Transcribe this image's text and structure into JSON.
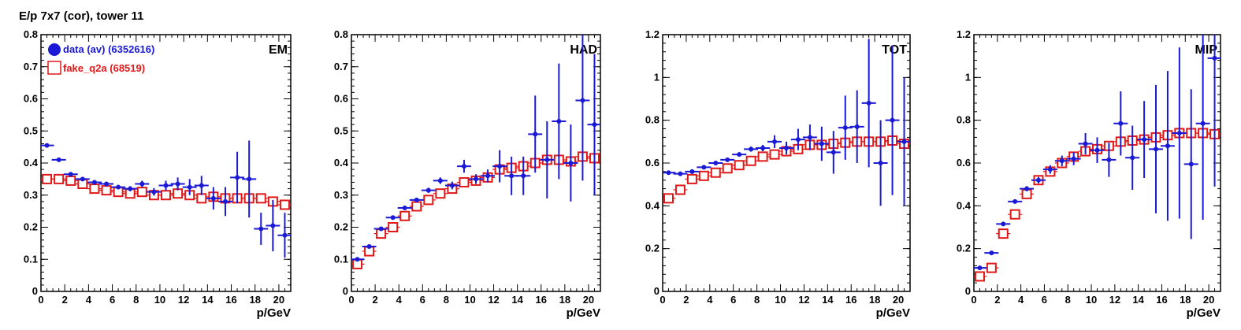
{
  "page": {
    "title": "E/p 7x7 (cor), tower 11"
  },
  "legend": {
    "entries": [
      {
        "label": "data (av) (6352616)",
        "color": "#1a1ad6",
        "marker": "filled-circle"
      },
      {
        "label": "fake_q2a (68519)",
        "color": "#e01818",
        "marker": "open-square"
      }
    ]
  },
  "colors": {
    "data": "#1a1ad6",
    "fake": "#e01818"
  },
  "chart_data": [
    {
      "type": "scatter",
      "panel_label": "EM",
      "xlabel": "p/GeV",
      "ylabel": "",
      "xlim": [
        0,
        21
      ],
      "ylim": [
        0,
        0.8
      ],
      "xticks": [
        "0",
        "2",
        "4",
        "6",
        "8",
        "10",
        "12",
        "14",
        "16",
        "18",
        "20"
      ],
      "yticks": [
        "0",
        "0.1",
        "0.2",
        "0.3",
        "0.4",
        "0.5",
        "0.6",
        "0.7",
        "0.8"
      ],
      "x": [
        0.5,
        1.5,
        2.5,
        3.5,
        4.5,
        5.5,
        6.5,
        7.5,
        8.5,
        9.5,
        10.5,
        11.5,
        12.5,
        13.5,
        14.5,
        15.5,
        16.5,
        17.5,
        18.5,
        19.5,
        20.5
      ],
      "series": [
        {
          "name": "data (av) (6352616)",
          "values": [
            0.455,
            0.41,
            0.365,
            0.35,
            0.34,
            0.335,
            0.325,
            0.32,
            0.335,
            0.31,
            0.33,
            0.335,
            0.325,
            0.33,
            0.29,
            0.28,
            0.355,
            0.35,
            0.195,
            0.205,
            0.175
          ],
          "errors": [
            0.005,
            0.005,
            0.005,
            0.005,
            0.005,
            0.006,
            0.007,
            0.008,
            0.01,
            0.012,
            0.015,
            0.02,
            0.025,
            0.03,
            0.035,
            0.045,
            0.08,
            0.12,
            0.05,
            0.08,
            0.07
          ]
        },
        {
          "name": "fake_q2a (68519)",
          "values": [
            0.35,
            0.35,
            0.345,
            0.335,
            0.32,
            0.315,
            0.31,
            0.305,
            0.31,
            0.3,
            0.3,
            0.305,
            0.3,
            0.29,
            0.295,
            0.29,
            0.29,
            0.29,
            0.29,
            0.28,
            0.27
          ]
        }
      ],
      "legend_position": "top-left"
    },
    {
      "type": "scatter",
      "panel_label": "HAD",
      "xlabel": "p/GeV",
      "ylabel": "",
      "xlim": [
        0,
        21
      ],
      "ylim": [
        0,
        0.8
      ],
      "xticks": [
        "0",
        "2",
        "4",
        "6",
        "8",
        "10",
        "12",
        "14",
        "16",
        "18",
        "20"
      ],
      "yticks": [
        "0",
        "0.1",
        "0.2",
        "0.3",
        "0.4",
        "0.5",
        "0.6",
        "0.7",
        "0.8"
      ],
      "x": [
        0.5,
        1.5,
        2.5,
        3.5,
        4.5,
        5.5,
        6.5,
        7.5,
        8.5,
        9.5,
        10.5,
        11.5,
        12.5,
        13.5,
        14.5,
        15.5,
        16.5,
        17.5,
        18.5,
        19.5,
        20.5
      ],
      "series": [
        {
          "name": "data (av) (6352616)",
          "values": [
            0.1,
            0.14,
            0.195,
            0.23,
            0.26,
            0.285,
            0.315,
            0.345,
            0.33,
            0.39,
            0.35,
            0.36,
            0.39,
            0.36,
            0.36,
            0.49,
            0.41,
            0.53,
            0.4,
            0.595,
            0.52
          ],
          "errors": [
            0.003,
            0.004,
            0.005,
            0.006,
            0.006,
            0.007,
            0.008,
            0.01,
            0.012,
            0.02,
            0.015,
            0.02,
            0.05,
            0.06,
            0.06,
            0.12,
            0.12,
            0.18,
            0.12,
            0.25,
            0.22
          ]
        },
        {
          "name": "fake_q2a (68519)",
          "values": [
            0.085,
            0.125,
            0.18,
            0.2,
            0.235,
            0.265,
            0.285,
            0.305,
            0.32,
            0.34,
            0.345,
            0.355,
            0.38,
            0.385,
            0.39,
            0.4,
            0.41,
            0.41,
            0.405,
            0.42,
            0.415
          ]
        }
      ]
    },
    {
      "type": "scatter",
      "panel_label": "TOT",
      "xlabel": "p/GeV",
      "ylabel": "",
      "xlim": [
        0,
        21
      ],
      "ylim": [
        0,
        1.2
      ],
      "xticks": [
        "0",
        "2",
        "4",
        "6",
        "8",
        "10",
        "12",
        "14",
        "16",
        "18",
        "20"
      ],
      "yticks": [
        "0",
        "0.2",
        "0.4",
        "0.6",
        "0.8",
        "1",
        "1.2"
      ],
      "x": [
        0.5,
        1.5,
        2.5,
        3.5,
        4.5,
        5.5,
        6.5,
        7.5,
        8.5,
        9.5,
        10.5,
        11.5,
        12.5,
        13.5,
        14.5,
        15.5,
        16.5,
        17.5,
        18.5,
        19.5,
        20.5
      ],
      "series": [
        {
          "name": "data (av) (6352616)",
          "values": [
            0.555,
            0.55,
            0.56,
            0.58,
            0.6,
            0.615,
            0.64,
            0.665,
            0.67,
            0.7,
            0.67,
            0.71,
            0.72,
            0.69,
            0.65,
            0.765,
            0.77,
            0.88,
            0.6,
            0.8,
            0.7
          ],
          "errors": [
            0.005,
            0.005,
            0.005,
            0.006,
            0.007,
            0.008,
            0.01,
            0.012,
            0.015,
            0.03,
            0.03,
            0.05,
            0.06,
            0.08,
            0.1,
            0.15,
            0.17,
            0.3,
            0.2,
            0.35,
            0.3
          ]
        },
        {
          "name": "fake_q2a (68519)",
          "values": [
            0.435,
            0.475,
            0.525,
            0.54,
            0.555,
            0.575,
            0.59,
            0.61,
            0.63,
            0.64,
            0.655,
            0.665,
            0.685,
            0.685,
            0.69,
            0.695,
            0.7,
            0.7,
            0.7,
            0.705,
            0.69
          ]
        }
      ]
    },
    {
      "type": "scatter",
      "panel_label": "MIP",
      "xlabel": "p/GeV",
      "ylabel": "",
      "xlim": [
        0,
        21
      ],
      "ylim": [
        0,
        1.2
      ],
      "xticks": [
        "0",
        "2",
        "4",
        "6",
        "8",
        "10",
        "12",
        "14",
        "16",
        "18",
        "20"
      ],
      "yticks": [
        "0",
        "0.2",
        "0.4",
        "0.6",
        "0.8",
        "1",
        "1.2"
      ],
      "x": [
        0.5,
        1.5,
        2.5,
        3.5,
        4.5,
        5.5,
        6.5,
        7.5,
        8.5,
        9.5,
        10.5,
        11.5,
        12.5,
        13.5,
        14.5,
        15.5,
        16.5,
        17.5,
        18.5,
        19.5,
        20.5
      ],
      "series": [
        {
          "name": "data (av) (6352616)",
          "values": [
            0.11,
            0.18,
            0.315,
            0.42,
            0.48,
            0.52,
            0.57,
            0.61,
            0.62,
            0.69,
            0.66,
            0.615,
            0.785,
            0.625,
            0.71,
            0.665,
            0.68,
            0.74,
            0.595,
            0.785,
            1.09
          ],
          "errors": [
            0.005,
            0.006,
            0.008,
            0.01,
            0.012,
            0.015,
            0.02,
            0.025,
            0.03,
            0.05,
            0.06,
            0.08,
            0.15,
            0.15,
            0.18,
            0.3,
            0.35,
            0.4,
            0.35,
            0.45,
            0.6
          ]
        },
        {
          "name": "fake_q2a (68519)",
          "values": [
            0.07,
            0.11,
            0.27,
            0.36,
            0.455,
            0.52,
            0.56,
            0.6,
            0.63,
            0.655,
            0.665,
            0.68,
            0.7,
            0.705,
            0.71,
            0.72,
            0.73,
            0.74,
            0.74,
            0.74,
            0.735
          ]
        }
      ]
    }
  ]
}
